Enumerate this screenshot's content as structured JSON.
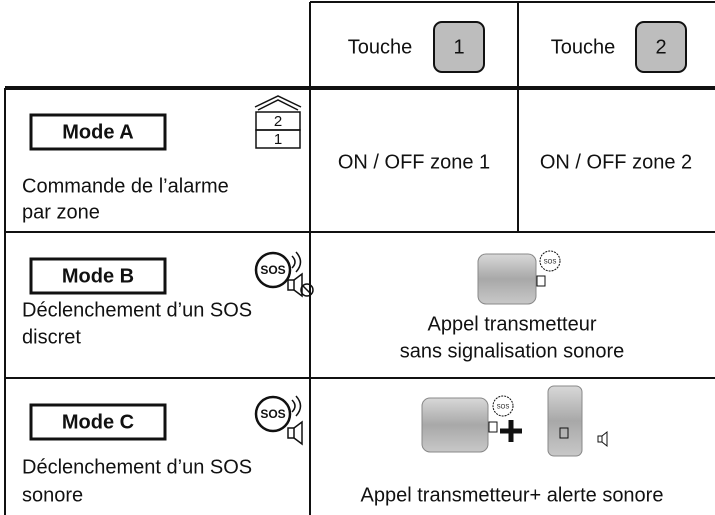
{
  "header": {
    "columns": [
      {
        "label": "Touche",
        "key": "1"
      },
      {
        "label": "Touche",
        "key": "2"
      }
    ]
  },
  "rows": [
    {
      "mode": "Mode A",
      "icon_labels": [
        "2",
        "1"
      ],
      "description": [
        "Commande de l’alarme",
        "par zone"
      ],
      "cells": [
        "ON / OFF zone 1",
        "ON / OFF zone 2"
      ]
    },
    {
      "mode": "Mode B",
      "icon_label": "SOS",
      "description": [
        "Déclenchement d’un SOS",
        "discret"
      ],
      "device_label": "SOS",
      "result": [
        "Appel transmetteur",
        "sans signalisation sonore"
      ]
    },
    {
      "mode": "Mode C",
      "icon_label": "SOS",
      "description": [
        "Déclenchement d’un SOS",
        "sonore"
      ],
      "device_label": "SOS",
      "result": [
        "Appel transmetteur+ alerte sonore"
      ]
    }
  ]
}
